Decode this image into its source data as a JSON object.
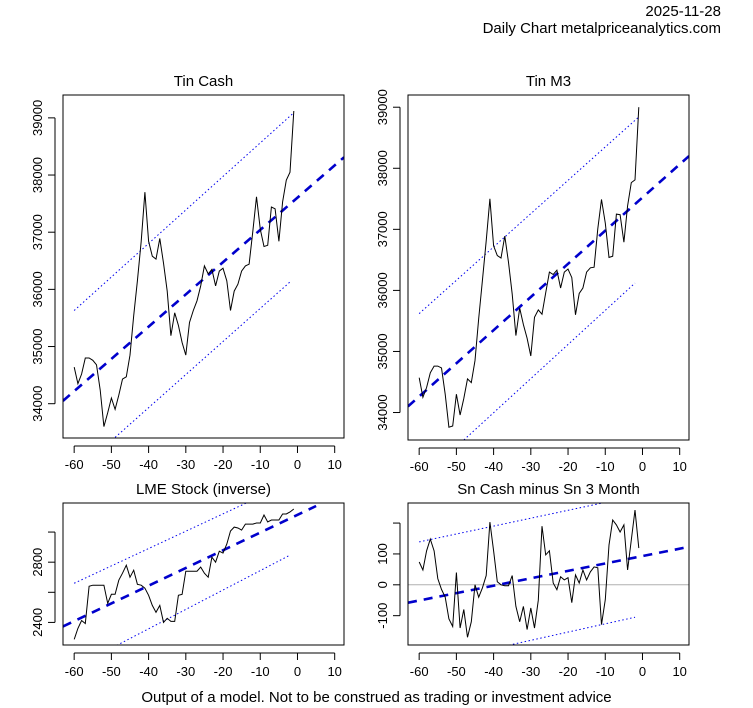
{
  "header": {
    "date": "2025-11-28",
    "source": "Daily Chart metalpriceanalytics.com"
  },
  "footer": "Output of a model. Not to be construed as trading or investment advice",
  "colors": {
    "series": "#000000",
    "trend": "#0000cc",
    "band": "#0000ee",
    "zero_line": "#b0b0b0",
    "axis": "#000000"
  },
  "chart_data": [
    {
      "id": "tin-cash",
      "type": "line",
      "title": "Tin Cash",
      "xlabel": "",
      "ylabel": "",
      "xlim": [
        -63,
        12.5
      ],
      "ylim": [
        33400,
        39400
      ],
      "xticks": [
        -60,
        -50,
        -40,
        -30,
        -20,
        -10,
        0,
        10
      ],
      "yticks": [
        34000,
        35000,
        36000,
        37000,
        38000,
        39000
      ],
      "ytick_labels": [
        "34000",
        "35000",
        "36000",
        "37000",
        "38000",
        "39000"
      ],
      "x": [
        -60,
        -59,
        -58,
        -57,
        -56,
        -55,
        -54,
        -53,
        -52,
        -51,
        -50,
        -49,
        -48,
        -47,
        -46,
        -45,
        -44,
        -43,
        -42,
        -41,
        -40,
        -39,
        -38,
        -37,
        -36,
        -35,
        -34,
        -33,
        -32,
        -31,
        -30,
        -29,
        -28,
        -27,
        -26,
        -25,
        -24,
        -23,
        -22,
        -21,
        -20,
        -19,
        -18,
        -17,
        -16,
        -15,
        -14,
        -13,
        -12,
        -11,
        -10,
        -9,
        -8,
        -7,
        -6,
        -5,
        -4,
        -3,
        -2,
        -1
      ],
      "values": [
        34640,
        34350,
        34520,
        34800,
        34800,
        34760,
        34680,
        34240,
        33600,
        33840,
        34100,
        33900,
        34150,
        34430,
        34470,
        34850,
        35540,
        36150,
        36840,
        37700,
        36840,
        36580,
        36530,
        36890,
        36460,
        35970,
        35190,
        35590,
        35370,
        35070,
        34850,
        35420,
        35630,
        35800,
        36060,
        36410,
        36270,
        36350,
        36060,
        36320,
        36370,
        36150,
        35630,
        35970,
        36090,
        36320,
        36410,
        36440,
        37010,
        37620,
        37050,
        36750,
        36770,
        37440,
        37410,
        36840,
        37530,
        37910,
        38050,
        39120
      ],
      "trend": {
        "x": [
          -63,
          12.5
        ],
        "y": [
          34050,
          38310
        ]
      },
      "upper_band": {
        "x": [
          -60,
          -1
        ],
        "y": [
          35630,
          39090
        ]
      },
      "lower_band": {
        "x": [
          -49,
          -2
        ],
        "y": [
          33410,
          36130
        ]
      },
      "zero_line": false
    },
    {
      "id": "tin-m3",
      "type": "line",
      "title": "Tin M3",
      "xlabel": "",
      "ylabel": "",
      "xlim": [
        -63,
        12.5
      ],
      "ylim": [
        33550,
        39200
      ],
      "xticks": [
        -60,
        -50,
        -40,
        -30,
        -20,
        -10,
        0,
        10
      ],
      "yticks": [
        34000,
        35000,
        36000,
        37000,
        38000,
        39000
      ],
      "ytick_labels": [
        "34000",
        "35000",
        "36000",
        "37000",
        "38000",
        "39000"
      ],
      "x": [
        -60,
        -59,
        -58,
        -57,
        -56,
        -55,
        -54,
        -53,
        -52,
        -51,
        -50,
        -49,
        -48,
        -47,
        -46,
        -45,
        -44,
        -43,
        -42,
        -41,
        -40,
        -39,
        -38,
        -37,
        -36,
        -35,
        -34,
        -33,
        -32,
        -31,
        -30,
        -29,
        -28,
        -27,
        -26,
        -25,
        -24,
        -23,
        -22,
        -21,
        -20,
        -19,
        -18,
        -17,
        -16,
        -15,
        -14,
        -13,
        -12,
        -11,
        -10,
        -9,
        -8,
        -7,
        -6,
        -5,
        -4,
        -3,
        -2,
        -1
      ],
      "values": [
        34570,
        34250,
        34410,
        34650,
        34760,
        34760,
        34730,
        34300,
        33760,
        33780,
        34300,
        33960,
        34230,
        34550,
        34490,
        34850,
        35540,
        36160,
        36810,
        37500,
        36730,
        36570,
        36530,
        36890,
        36460,
        35940,
        35260,
        35710,
        35440,
        35215,
        34925,
        35560,
        35680,
        35610,
        35960,
        36300,
        36260,
        36330,
        36040,
        36300,
        36350,
        36210,
        35600,
        35950,
        36040,
        36300,
        36370,
        36380,
        37010,
        37490,
        37100,
        36540,
        36560,
        37250,
        37240,
        36790,
        37385,
        37765,
        37810,
        39000
      ],
      "trend": {
        "x": [
          -63,
          12.5
        ],
        "y": [
          34100,
          38200
        ]
      },
      "upper_band": {
        "x": [
          -60,
          -1
        ],
        "y": [
          35620,
          38840
        ]
      },
      "lower_band": {
        "x": [
          -48,
          -2
        ],
        "y": [
          33550,
          36120
        ]
      },
      "zero_line": false
    },
    {
      "id": "lme-stock",
      "type": "line",
      "title": "LME Stock (inverse)",
      "xlabel": "",
      "ylabel": "",
      "xlim": [
        -63,
        12.5
      ],
      "ylim": [
        2250,
        3193
      ],
      "xticks": [
        -60,
        -50,
        -40,
        -30,
        -20,
        -10,
        0,
        10
      ],
      "yticks": [
        2400,
        2600,
        2800,
        3000
      ],
      "ytick_labels": [
        "2400",
        "",
        "2800",
        ""
      ],
      "x": [
        -60,
        -59,
        -58,
        -57,
        -56,
        -55,
        -54,
        -53,
        -52,
        -51,
        -50,
        -49,
        -48,
        -47,
        -46,
        -45,
        -44,
        -43,
        -42,
        -41,
        -40,
        -39,
        -38,
        -37,
        -36,
        -35,
        -34,
        -33,
        -32,
        -31,
        -30,
        -29,
        -28,
        -27,
        -26,
        -25,
        -24,
        -23,
        -22,
        -21,
        -20,
        -19,
        -18,
        -17,
        -16,
        -15,
        -14,
        -13,
        -12,
        -11,
        -10,
        -9,
        -8,
        -7,
        -6,
        -5,
        -4,
        -3,
        -2,
        -1
      ],
      "values": [
        2287,
        2360,
        2413,
        2393,
        2640,
        2647,
        2647,
        2647,
        2647,
        2527,
        2587,
        2587,
        2680,
        2727,
        2780,
        2700,
        2747,
        2653,
        2647,
        2627,
        2580,
        2513,
        2467,
        2513,
        2400,
        2427,
        2407,
        2407,
        2580,
        2587,
        2740,
        2740,
        2740,
        2740,
        2767,
        2727,
        2700,
        2833,
        2800,
        2873,
        2860,
        2920,
        3007,
        3033,
        3027,
        3013,
        3053,
        3053,
        3053,
        3060,
        3060,
        3113,
        3067,
        3080,
        3080,
        3080,
        3120,
        3120,
        3133,
        3153
      ],
      "trend": {
        "x": [
          -63,
          5
        ],
        "y": [
          2373,
          3173
        ]
      },
      "upper_band": {
        "x": [
          -60,
          -1
        ],
        "y": [
          2660,
          3340
        ]
      },
      "lower_band": {
        "x": [
          -60,
          -2
        ],
        "y": [
          2100,
          2847
        ]
      },
      "zero_line": false
    },
    {
      "id": "sn-spread",
      "type": "line",
      "title": "Sn Cash minus Sn 3 Month",
      "xlabel": "",
      "ylabel": "",
      "xlim": [
        -63,
        12.5
      ],
      "ylim": [
        -195,
        265
      ],
      "xticks": [
        -60,
        -50,
        -40,
        -30,
        -20,
        -10,
        0,
        10
      ],
      "yticks": [
        -100,
        0,
        100,
        200
      ],
      "ytick_labels": [
        "-100",
        "0",
        "100",
        ""
      ],
      "x": [
        -60,
        -59,
        -58,
        -57,
        -56,
        -55,
        -54,
        -53,
        -52,
        -51,
        -50,
        -49,
        -48,
        -47,
        -46,
        -45,
        -44,
        -43,
        -42,
        -41,
        -40,
        -39,
        -38,
        -37,
        -36,
        -35,
        -34,
        -33,
        -32,
        -31,
        -30,
        -29,
        -28,
        -27,
        -26,
        -25,
        -24,
        -23,
        -22,
        -21,
        -20,
        -19,
        -18,
        -17,
        -16,
        -15,
        -14,
        -13,
        -12,
        -11,
        -10,
        -9,
        -8,
        -7,
        -6,
        -5,
        -4,
        -3,
        -2,
        -1
      ],
      "values": [
        74,
        48,
        110,
        148,
        110,
        20,
        -15,
        -40,
        -110,
        -135,
        40,
        -140,
        -80,
        -170,
        -120,
        0,
        -40,
        -10,
        30,
        203,
        110,
        10,
        0,
        -3,
        -3,
        30,
        -70,
        -120,
        -70,
        -145,
        -75,
        -140,
        -50,
        190,
        97,
        110,
        6,
        -16,
        26,
        16,
        23,
        -58,
        32,
        6,
        48,
        16,
        42,
        58,
        55,
        -129,
        -48,
        129,
        210,
        194,
        171,
        194,
        48,
        145,
        242,
        119
      ],
      "trend": {
        "x": [
          -63,
          12.5
        ],
        "y": [
          -58,
          123
        ]
      },
      "upper_band": {
        "x": [
          -60,
          -1
        ],
        "y": [
          139,
          290
        ]
      },
      "lower_band": {
        "x": [
          -60,
          -2
        ],
        "y": [
          -260,
          -105
        ]
      },
      "zero_line": true
    }
  ]
}
